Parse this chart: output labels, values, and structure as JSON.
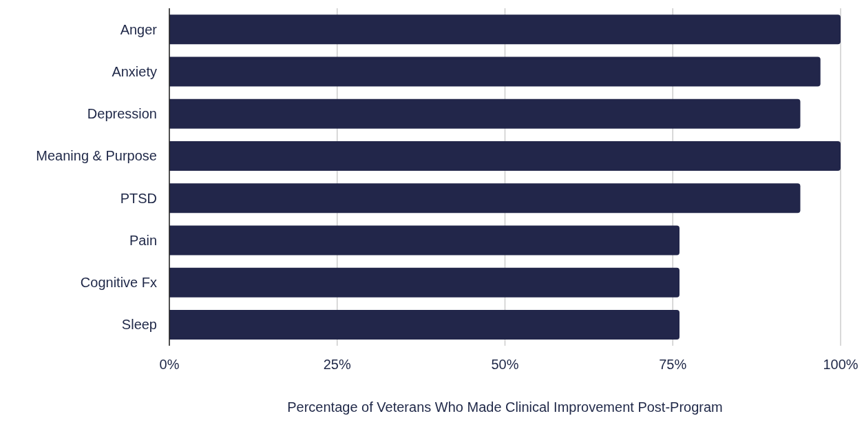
{
  "chart_data": {
    "type": "bar",
    "orientation": "horizontal",
    "xlabel": "Percentage of Veterans Who Made Clinical Improvement Post-Program",
    "categories": [
      "Anger",
      "Anxiety",
      "Depression",
      "Meaning & Purpose",
      "PTSD",
      "Pain",
      "Cognitive Fx",
      "Sleep"
    ],
    "values": [
      100,
      97,
      94,
      100,
      94,
      76,
      76,
      76
    ],
    "color": "#22264a",
    "xlim": [
      0,
      100
    ],
    "xticks": [
      {
        "value": 0,
        "label": "0%"
      },
      {
        "value": 25,
        "label": "25%"
      },
      {
        "value": 50,
        "label": "50%"
      },
      {
        "value": 75,
        "label": "75%"
      },
      {
        "value": 100,
        "label": "100%"
      }
    ],
    "grid": "x",
    "legend": false
  }
}
